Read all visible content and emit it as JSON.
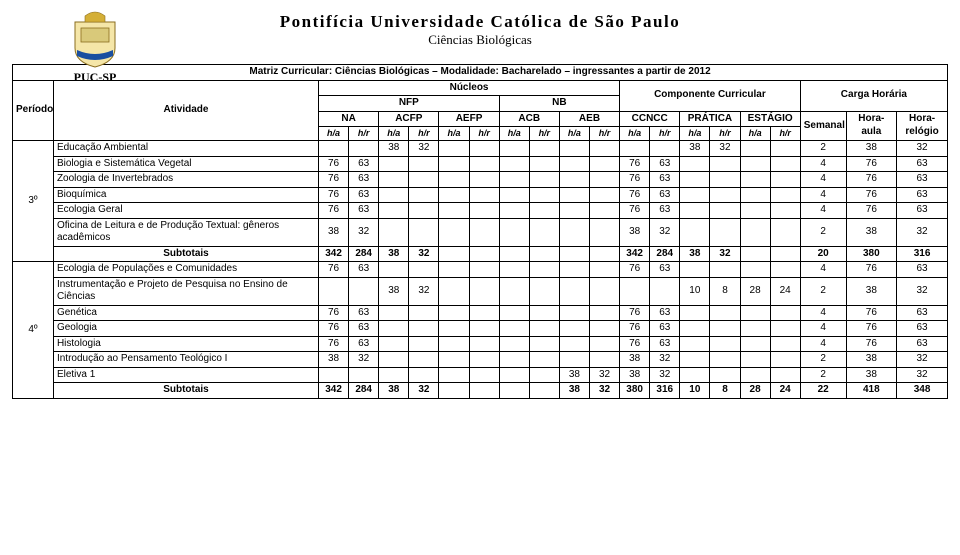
{
  "header": {
    "university": "Pontifícia Universidade Católica de São Paulo",
    "dept": "Ciências Biológicas",
    "logo_label": "PUC-SP",
    "logo": {
      "shield_fill": "#f5e6a8",
      "banner_fill": "#d9c97a",
      "ribbon_fill": "#1a4fa0",
      "crown_fill": "#d4af37"
    }
  },
  "table": {
    "title": "Matriz Curricular: Ciências Biológicas – Modalidade: Bacharelado – ingressantes a partir de 2012",
    "col_periodo": "Período",
    "col_atividade": "Atividade",
    "nucleos": "Núcleos",
    "nfp": "NFP",
    "nb": "NB",
    "componente": "Componente Curricular",
    "carga": "Carga Horária",
    "na": "NA",
    "acfp": "ACFP",
    "aefp": "AEFP",
    "acb": "ACB",
    "aeb": "AEB",
    "ccncc": "CCNCC",
    "pratica": "PRÁTICA",
    "estagio": "ESTÁGIO",
    "semanal": "Semanal",
    "hora_aula": "Hora-aula",
    "hora_relogio": "Hora-relógio",
    "ha": "h/a",
    "hr": "h/r",
    "subtotais": "Subtotais",
    "period3": "3º",
    "period4": "4º",
    "rows3": [
      {
        "name": "Educação Ambiental",
        "na_ha": "",
        "na_hr": "",
        "acfp_ha": "38",
        "acfp_hr": "32",
        "aefp_ha": "",
        "aefp_hr": "",
        "acb_ha": "",
        "acb_hr": "",
        "aeb_ha": "",
        "aeb_hr": "",
        "cc_ha": "",
        "cc_hr": "",
        "pr_ha": "38",
        "pr_hr": "32",
        "es_ha": "",
        "es_hr": "",
        "sem": "2",
        "hoa": "38",
        "hor": "32"
      },
      {
        "name": "Biologia e Sistemática Vegetal",
        "na_ha": "76",
        "na_hr": "63",
        "acfp_ha": "",
        "acfp_hr": "",
        "aefp_ha": "",
        "aefp_hr": "",
        "acb_ha": "",
        "acb_hr": "",
        "aeb_ha": "",
        "aeb_hr": "",
        "cc_ha": "76",
        "cc_hr": "63",
        "pr_ha": "",
        "pr_hr": "",
        "es_ha": "",
        "es_hr": "",
        "sem": "4",
        "hoa": "76",
        "hor": "63"
      },
      {
        "name": "Zoologia de Invertebrados",
        "na_ha": "76",
        "na_hr": "63",
        "acfp_ha": "",
        "acfp_hr": "",
        "aefp_ha": "",
        "aefp_hr": "",
        "acb_ha": "",
        "acb_hr": "",
        "aeb_ha": "",
        "aeb_hr": "",
        "cc_ha": "76",
        "cc_hr": "63",
        "pr_ha": "",
        "pr_hr": "",
        "es_ha": "",
        "es_hr": "",
        "sem": "4",
        "hoa": "76",
        "hor": "63"
      },
      {
        "name": "Bioquímica",
        "na_ha": "76",
        "na_hr": "63",
        "acfp_ha": "",
        "acfp_hr": "",
        "aefp_ha": "",
        "aefp_hr": "",
        "acb_ha": "",
        "acb_hr": "",
        "aeb_ha": "",
        "aeb_hr": "",
        "cc_ha": "76",
        "cc_hr": "63",
        "pr_ha": "",
        "pr_hr": "",
        "es_ha": "",
        "es_hr": "",
        "sem": "4",
        "hoa": "76",
        "hor": "63"
      },
      {
        "name": "Ecologia Geral",
        "na_ha": "76",
        "na_hr": "63",
        "acfp_ha": "",
        "acfp_hr": "",
        "aefp_ha": "",
        "aefp_hr": "",
        "acb_ha": "",
        "acb_hr": "",
        "aeb_ha": "",
        "aeb_hr": "",
        "cc_ha": "76",
        "cc_hr": "63",
        "pr_ha": "",
        "pr_hr": "",
        "es_ha": "",
        "es_hr": "",
        "sem": "4",
        "hoa": "76",
        "hor": "63"
      },
      {
        "name": "Oficina de Leitura e de Produção Textual: gêneros acadêmicos",
        "na_ha": "38",
        "na_hr": "32",
        "acfp_ha": "",
        "acfp_hr": "",
        "aefp_ha": "",
        "aefp_hr": "",
        "acb_ha": "",
        "acb_hr": "",
        "aeb_ha": "",
        "aeb_hr": "",
        "cc_ha": "38",
        "cc_hr": "32",
        "pr_ha": "",
        "pr_hr": "",
        "es_ha": "",
        "es_hr": "",
        "sem": "2",
        "hoa": "38",
        "hor": "32"
      }
    ],
    "sub3": {
      "na_ha": "342",
      "na_hr": "284",
      "acfp_ha": "38",
      "acfp_hr": "32",
      "aefp_ha": "",
      "aefp_hr": "",
      "acb_ha": "",
      "acb_hr": "",
      "aeb_ha": "",
      "aeb_hr": "",
      "cc_ha": "342",
      "cc_hr": "284",
      "pr_ha": "38",
      "pr_hr": "32",
      "es_ha": "",
      "es_hr": "",
      "sem": "20",
      "hoa": "380",
      "hor": "316"
    },
    "rows4": [
      {
        "name": "Ecologia de Populações e Comunidades",
        "na_ha": "76",
        "na_hr": "63",
        "acfp_ha": "",
        "acfp_hr": "",
        "aefp_ha": "",
        "aefp_hr": "",
        "acb_ha": "",
        "acb_hr": "",
        "aeb_ha": "",
        "aeb_hr": "",
        "cc_ha": "76",
        "cc_hr": "63",
        "pr_ha": "",
        "pr_hr": "",
        "es_ha": "",
        "es_hr": "",
        "sem": "4",
        "hoa": "76",
        "hor": "63"
      },
      {
        "name": "Instrumentação e Projeto de Pesquisa no Ensino de Ciências",
        "na_ha": "",
        "na_hr": "",
        "acfp_ha": "38",
        "acfp_hr": "32",
        "aefp_ha": "",
        "aefp_hr": "",
        "acb_ha": "",
        "acb_hr": "",
        "aeb_ha": "",
        "aeb_hr": "",
        "cc_ha": "",
        "cc_hr": "",
        "pr_ha": "10",
        "pr_hr": "8",
        "es_ha": "28",
        "es_hr": "24",
        "sem": "2",
        "hoa": "38",
        "hor": "32"
      },
      {
        "name": "Genética",
        "na_ha": "76",
        "na_hr": "63",
        "acfp_ha": "",
        "acfp_hr": "",
        "aefp_ha": "",
        "aefp_hr": "",
        "acb_ha": "",
        "acb_hr": "",
        "aeb_ha": "",
        "aeb_hr": "",
        "cc_ha": "76",
        "cc_hr": "63",
        "pr_ha": "",
        "pr_hr": "",
        "es_ha": "",
        "es_hr": "",
        "sem": "4",
        "hoa": "76",
        "hor": "63"
      },
      {
        "name": "Geologia",
        "na_ha": "76",
        "na_hr": "63",
        "acfp_ha": "",
        "acfp_hr": "",
        "aefp_ha": "",
        "aefp_hr": "",
        "acb_ha": "",
        "acb_hr": "",
        "aeb_ha": "",
        "aeb_hr": "",
        "cc_ha": "76",
        "cc_hr": "63",
        "pr_ha": "",
        "pr_hr": "",
        "es_ha": "",
        "es_hr": "",
        "sem": "4",
        "hoa": "76",
        "hor": "63"
      },
      {
        "name": "Histologia",
        "na_ha": "76",
        "na_hr": "63",
        "acfp_ha": "",
        "acfp_hr": "",
        "aefp_ha": "",
        "aefp_hr": "",
        "acb_ha": "",
        "acb_hr": "",
        "aeb_ha": "",
        "aeb_hr": "",
        "cc_ha": "76",
        "cc_hr": "63",
        "pr_ha": "",
        "pr_hr": "",
        "es_ha": "",
        "es_hr": "",
        "sem": "4",
        "hoa": "76",
        "hor": "63"
      },
      {
        "name": "Introdução ao Pensamento Teológico I",
        "na_ha": "38",
        "na_hr": "32",
        "acfp_ha": "",
        "acfp_hr": "",
        "aefp_ha": "",
        "aefp_hr": "",
        "acb_ha": "",
        "acb_hr": "",
        "aeb_ha": "",
        "aeb_hr": "",
        "cc_ha": "38",
        "cc_hr": "32",
        "pr_ha": "",
        "pr_hr": "",
        "es_ha": "",
        "es_hr": "",
        "sem": "2",
        "hoa": "38",
        "hor": "32"
      },
      {
        "name": "Eletiva 1",
        "na_ha": "",
        "na_hr": "",
        "acfp_ha": "",
        "acfp_hr": "",
        "aefp_ha": "",
        "aefp_hr": "",
        "acb_ha": "",
        "acb_hr": "",
        "aeb_ha": "38",
        "aeb_hr": "32",
        "cc_ha": "38",
        "cc_hr": "32",
        "pr_ha": "",
        "pr_hr": "",
        "es_ha": "",
        "es_hr": "",
        "sem": "2",
        "hoa": "38",
        "hor": "32"
      }
    ],
    "sub4": {
      "na_ha": "342",
      "na_hr": "284",
      "acfp_ha": "38",
      "acfp_hr": "32",
      "aefp_ha": "",
      "aefp_hr": "",
      "acb_ha": "",
      "acb_hr": "",
      "aeb_ha": "38",
      "aeb_hr": "32",
      "cc_ha": "380",
      "cc_hr": "316",
      "pr_ha": "10",
      "pr_hr": "8",
      "es_ha": "28",
      "es_hr": "24",
      "sem": "22",
      "hoa": "418",
      "hor": "348"
    }
  }
}
